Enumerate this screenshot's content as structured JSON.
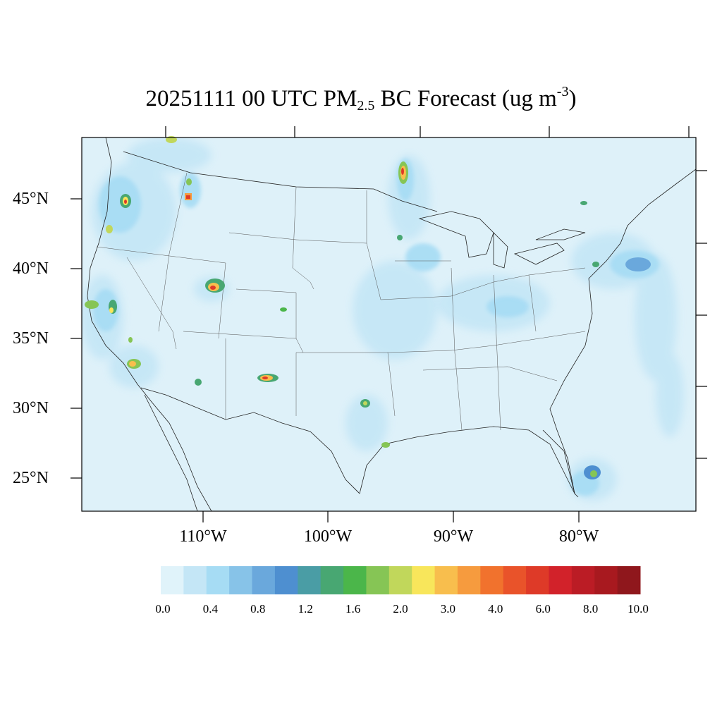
{
  "title": {
    "prefix": "20251111 00 UTC PM",
    "sub": "2.5",
    "middle": " BC Forecast (ug m",
    "sup": "-3",
    "suffix": ")"
  },
  "map": {
    "ocean_color": "#def1f9",
    "lat_labels": [
      "45°N",
      "40°N",
      "35°N",
      "30°N",
      "25°N"
    ],
    "lon_labels": [
      "110°W",
      "100°W",
      "90°W",
      "80°W"
    ]
  },
  "colorbar": {
    "colors": [
      "#e0f3fa",
      "#c4e6f6",
      "#a6dcf4",
      "#87c3e8",
      "#6aa8dc",
      "#4e8fd0",
      "#4a9da5",
      "#48a772",
      "#4bb64a",
      "#86c555",
      "#c1d75b",
      "#f8e65b",
      "#f8be4d",
      "#f69b3e",
      "#f1722d",
      "#e9532a",
      "#de3a28",
      "#d2222a",
      "#bb1c25",
      "#a8191f",
      "#8f171c"
    ],
    "labels": [
      "0.0",
      "0.4",
      "0.8",
      "1.2",
      "1.6",
      "2.0",
      "3.0",
      "4.0",
      "6.0",
      "8.0",
      "10.0"
    ]
  },
  "hotspots": [
    {
      "name": "pacific-northwest",
      "level": 5
    },
    {
      "name": "idaho",
      "level": 6
    },
    {
      "name": "montana",
      "level": 4
    },
    {
      "name": "utah",
      "level": 7
    },
    {
      "name": "northern-california",
      "level": 5
    },
    {
      "name": "southern-california",
      "level": 5
    },
    {
      "name": "arizona",
      "level": 3
    },
    {
      "name": "new-mexico",
      "level": 7
    },
    {
      "name": "minnesota",
      "level": 6
    },
    {
      "name": "houston",
      "level": 3
    },
    {
      "name": "south-florida",
      "level": 3
    },
    {
      "name": "new-york",
      "level": 3
    }
  ]
}
